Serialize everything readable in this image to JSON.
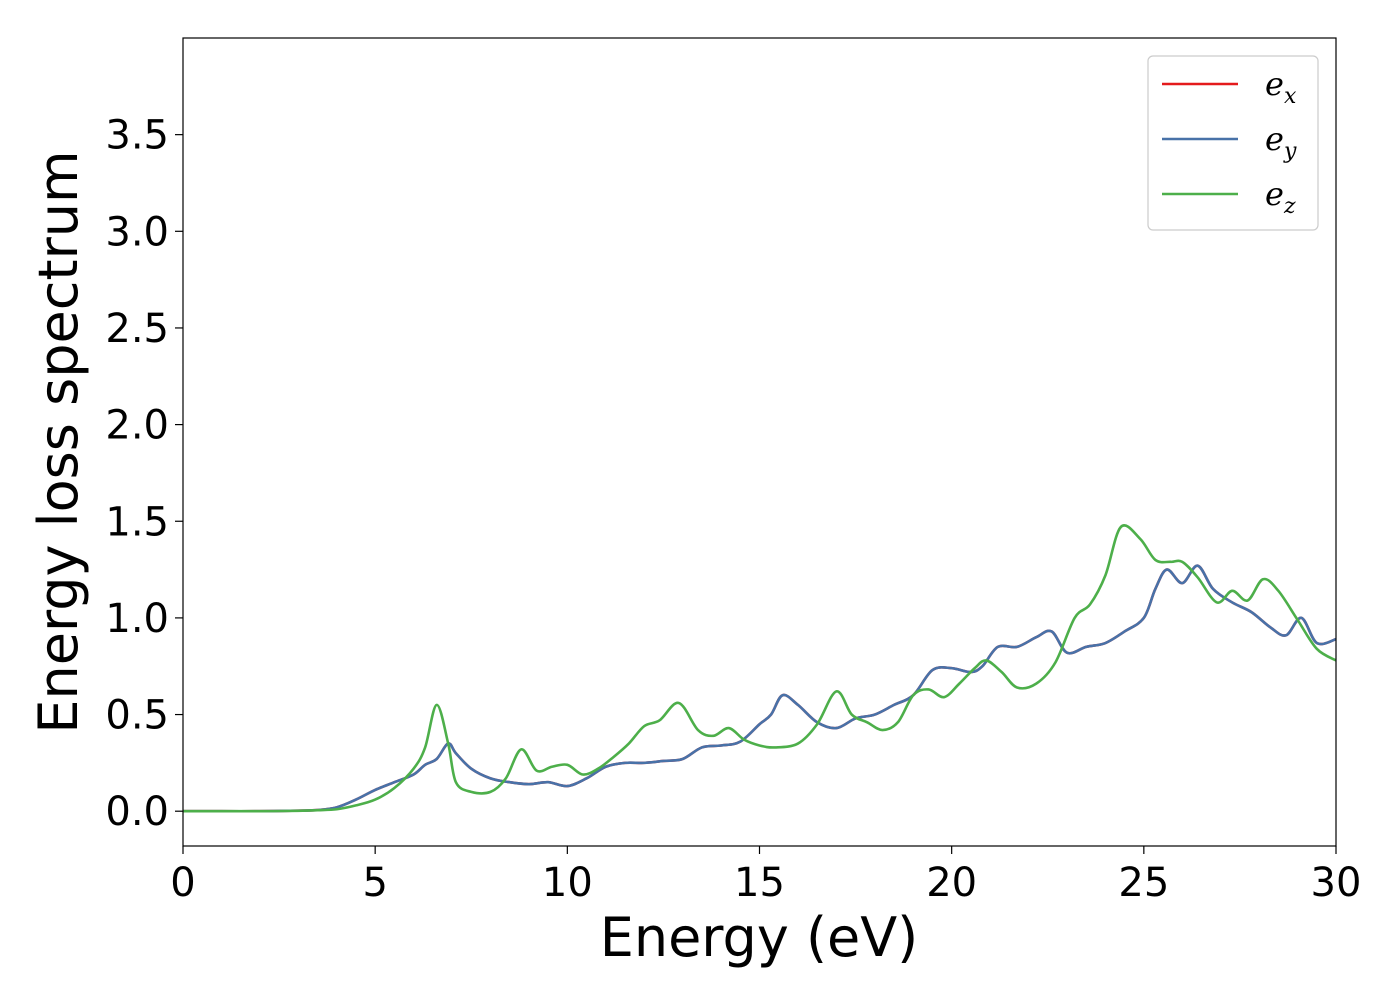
{
  "chart_data": {
    "type": "line",
    "title": "",
    "xlabel": "Energy (eV)",
    "ylabel": "Energy loss spectrum",
    "xlim": [
      0,
      30
    ],
    "ylim": [
      -0.18,
      4.0
    ],
    "xticks": [
      "0",
      "5",
      "10",
      "15",
      "20",
      "25",
      "30"
    ],
    "yticks": [
      "0.0",
      "0.5",
      "1.0",
      "1.5",
      "2.0",
      "2.5",
      "3.0",
      "3.5"
    ],
    "grid": false,
    "legend_position": "top-right",
    "series": [
      {
        "name": "e_x",
        "legend_base": "e",
        "legend_sub": "x",
        "color": "#e41a1c",
        "hidden_under": "e_y",
        "x": [],
        "y": []
      },
      {
        "name": "e_y",
        "legend_base": "e",
        "legend_sub": "y",
        "color": "#4872a8",
        "x": [
          0,
          1,
          2,
          3,
          3.5,
          4,
          4.5,
          5,
          5.5,
          6,
          6.3,
          6.6,
          6.9,
          7.1,
          7.5,
          8,
          8.5,
          9,
          9.5,
          10,
          10.5,
          11,
          11.5,
          12,
          12.5,
          13,
          13.5,
          14,
          14.5,
          15,
          15.3,
          15.6,
          16,
          16.5,
          17,
          17.5,
          18,
          18.5,
          19,
          19.5,
          20,
          20.5,
          20.8,
          21.2,
          21.7,
          22.2,
          22.6,
          23,
          23.5,
          24,
          24.5,
          25,
          25.3,
          25.6,
          26,
          26.4,
          26.8,
          27.3,
          27.8,
          28.3,
          28.7,
          29.1,
          29.5,
          30
        ],
        "y": [
          0,
          0,
          0,
          0.003,
          0.006,
          0.02,
          0.06,
          0.11,
          0.15,
          0.19,
          0.24,
          0.27,
          0.35,
          0.3,
          0.22,
          0.17,
          0.15,
          0.14,
          0.15,
          0.13,
          0.17,
          0.23,
          0.25,
          0.25,
          0.26,
          0.27,
          0.33,
          0.34,
          0.36,
          0.45,
          0.5,
          0.6,
          0.55,
          0.46,
          0.43,
          0.48,
          0.5,
          0.55,
          0.6,
          0.73,
          0.74,
          0.72,
          0.75,
          0.85,
          0.85,
          0.9,
          0.93,
          0.82,
          0.85,
          0.87,
          0.93,
          1.0,
          1.15,
          1.25,
          1.18,
          1.27,
          1.15,
          1.08,
          1.03,
          0.95,
          0.91,
          1.0,
          0.87,
          0.89
        ]
      },
      {
        "name": "e_z",
        "legend_base": "e",
        "legend_sub": "z",
        "color": "#4daf4a",
        "x": [
          0,
          1,
          2,
          3,
          3.5,
          4,
          4.5,
          5,
          5.5,
          6,
          6.3,
          6.6,
          6.9,
          7.1,
          7.5,
          8,
          8.4,
          8.8,
          9.2,
          9.6,
          10,
          10.4,
          10.8,
          11.2,
          11.6,
          12,
          12.4,
          12.9,
          13.4,
          13.8,
          14.2,
          14.6,
          15,
          15.4,
          16,
          16.5,
          17,
          17.4,
          17.8,
          18.2,
          18.6,
          19,
          19.4,
          19.8,
          20.2,
          20.6,
          20.9,
          21.3,
          21.7,
          22.2,
          22.7,
          23.2,
          23.6,
          24,
          24.4,
          24.9,
          25.3,
          25.7,
          26,
          26.4,
          26.9,
          27.3,
          27.7,
          28.1,
          28.5,
          29,
          29.5,
          30
        ],
        "y": [
          0,
          0,
          0,
          0.002,
          0.005,
          0.01,
          0.03,
          0.06,
          0.12,
          0.22,
          0.33,
          0.55,
          0.35,
          0.15,
          0.1,
          0.1,
          0.17,
          0.32,
          0.21,
          0.23,
          0.24,
          0.19,
          0.22,
          0.28,
          0.35,
          0.44,
          0.47,
          0.56,
          0.42,
          0.39,
          0.43,
          0.37,
          0.34,
          0.33,
          0.35,
          0.45,
          0.62,
          0.5,
          0.46,
          0.42,
          0.46,
          0.6,
          0.63,
          0.59,
          0.66,
          0.74,
          0.78,
          0.72,
          0.64,
          0.66,
          0.77,
          1.0,
          1.07,
          1.22,
          1.47,
          1.41,
          1.3,
          1.29,
          1.29,
          1.21,
          1.08,
          1.14,
          1.09,
          1.2,
          1.14,
          0.99,
          0.84,
          0.78
        ]
      }
    ]
  }
}
